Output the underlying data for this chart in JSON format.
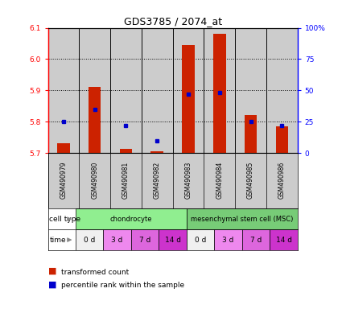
{
  "title": "GDS3785 / 2074_at",
  "samples": [
    "GSM490979",
    "GSM490980",
    "GSM490981",
    "GSM490982",
    "GSM490983",
    "GSM490984",
    "GSM490985",
    "GSM490986"
  ],
  "red_values": [
    5.73,
    5.91,
    5.712,
    5.706,
    6.045,
    6.08,
    5.822,
    5.785
  ],
  "blue_values_pct": [
    25,
    35,
    22,
    10,
    47,
    48,
    25,
    22
  ],
  "ylim_left": [
    5.7,
    6.1
  ],
  "ylim_right": [
    0,
    100
  ],
  "yticks_left": [
    5.7,
    5.8,
    5.9,
    6.0,
    6.1
  ],
  "yticks_right": [
    0,
    25,
    50,
    75,
    100
  ],
  "ytick_labels_right": [
    "0",
    "25",
    "50",
    "75",
    "100%"
  ],
  "bar_bottom": 5.7,
  "cell_types": [
    "chondrocyte",
    "mesenchymal stem cell (MSC)"
  ],
  "cell_type_colors": [
    "#90EE90",
    "#77CC77"
  ],
  "time_labels": [
    "0 d",
    "3 d",
    "7 d",
    "14 d",
    "0 d",
    "3 d",
    "7 d",
    "14 d"
  ],
  "time_colors": [
    "#f0f0f0",
    "#EE88EE",
    "#DD66DD",
    "#CC33CC",
    "#f0f0f0",
    "#EE88EE",
    "#DD66DD",
    "#CC33CC"
  ],
  "bar_color": "#CC2200",
  "blue_color": "#0000CC",
  "bg_color": "#ffffff",
  "sample_bg": "#CCCCCC",
  "bar_width": 0.4
}
